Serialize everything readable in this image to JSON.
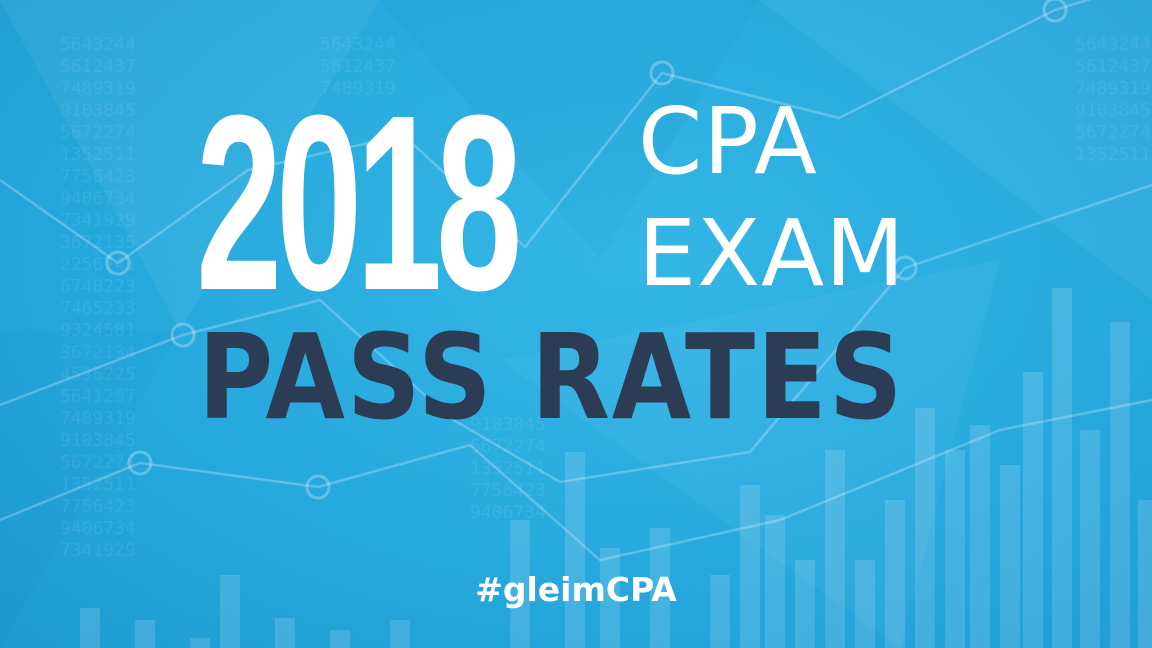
{
  "graphic": {
    "year": "2018",
    "line1": "CPA",
    "line2": "EXAM",
    "line3": "PASS RATES",
    "hashtag": "#gleimCPA"
  },
  "colors": {
    "background": "#29a9dd",
    "title_white": "#ffffff",
    "title_navy": "#2d3c55"
  }
}
